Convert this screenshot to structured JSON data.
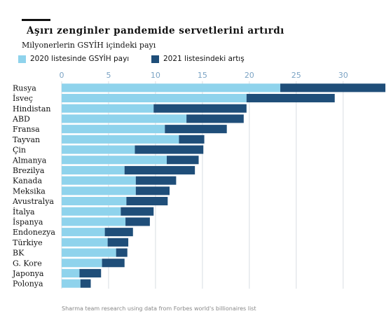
{
  "title": "Aşırı zenginler pandemide servetlerini artırdı",
  "subtitle": "Milyonerlerin GSYİH içindeki payı",
  "caption": "Sharma team research using data from Forbes world's billionaires list",
  "colors": {
    "light": "#8fd3ec",
    "dark": "#1f4e79",
    "grid": "#d8dde2",
    "axis_text": "#7ba3c4"
  },
  "chart_data": {
    "type": "bar",
    "orientation": "horizontal",
    "stacked": true,
    "legend_position": "top-left",
    "grid": true,
    "xlim": [
      0,
      34.5
    ],
    "xticks": [
      0,
      5,
      10,
      15,
      20,
      25,
      30
    ],
    "categories": [
      "Rusya",
      "İsveç",
      "Hindistan",
      "ABD",
      "Fransa",
      "Tayvan",
      "Çin",
      "Almanya",
      "Brezilya",
      "Kanada",
      "Meksika",
      "Avustralya",
      "İtalya",
      "İspanya",
      "Endonezya",
      "Türkiye",
      "BK",
      "G. Kore",
      "Japonya",
      "Polonya"
    ],
    "series": [
      {
        "name": "2020 listesinde GSYİH payı",
        "values": [
          23.3,
          19.7,
          9.8,
          13.3,
          11.0,
          12.5,
          7.8,
          11.2,
          6.7,
          7.9,
          7.9,
          6.9,
          6.3,
          6.8,
          4.6,
          4.9,
          5.8,
          4.3,
          1.9,
          2.0
        ]
      },
      {
        "name": "2021 listesindeki artış",
        "values": [
          11.2,
          9.4,
          9.9,
          6.1,
          6.6,
          2.7,
          7.3,
          3.4,
          7.5,
          4.3,
          3.6,
          4.4,
          3.5,
          2.6,
          3.0,
          2.2,
          1.2,
          2.4,
          2.3,
          1.1
        ]
      }
    ]
  }
}
